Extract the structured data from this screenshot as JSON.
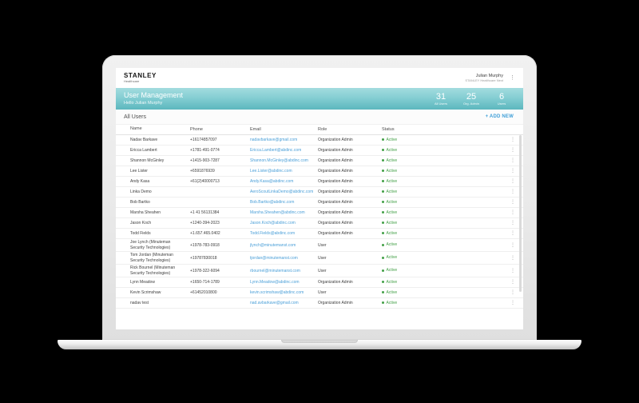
{
  "appbar": {
    "brand": "STANLEY",
    "brand_sub": "Healthcare",
    "account_name": "Julian Murphy",
    "account_org": "STANLEY Healthcare Next",
    "menu_icon": "kebab-menu"
  },
  "banner": {
    "title": "User Management",
    "subtitle": "Hello Julian Murphy",
    "stats": [
      {
        "value": "31",
        "label": "All Users"
      },
      {
        "value": "25",
        "label": "Org. Admin"
      },
      {
        "value": "6",
        "label": "Users"
      }
    ]
  },
  "toolbar": {
    "section_title": "All Users",
    "add_new_label": "+ ADD NEW"
  },
  "table": {
    "columns": [
      "Name",
      "Phone",
      "Email",
      "Role",
      "Status"
    ],
    "rows": [
      {
        "name": "Nadav Barkave",
        "phone": "+16174857097",
        "email": "nadavbarkave@gmail.com",
        "role": "Organization Admin",
        "status": "Active"
      },
      {
        "name": "Ericca Lambert",
        "phone": "+1781-491-0774",
        "email": "Ericca.Lambert@abdinc.com",
        "role": "Organization Admin",
        "status": "Active"
      },
      {
        "name": "Shannon McGinley",
        "phone": "+1415-903-7287",
        "email": "Shannon.McGinley@abdinc.com",
        "role": "Organization Admin",
        "status": "Active"
      },
      {
        "name": "Lee Lister",
        "phone": "+6591876939",
        "email": "Lee.Lister@abdinc.com",
        "role": "Organization Admin",
        "status": "Active"
      },
      {
        "name": "Andy Kasa",
        "phone": "+61(2)40000713",
        "email": "Andy.Kasa@abdinc.com",
        "role": "Organization Admin",
        "status": "Active"
      },
      {
        "name": "Linka Demo",
        "phone": "",
        "email": "AeroScoutLinkaDemo@abdinc.com",
        "role": "Organization Admin",
        "status": "Active"
      },
      {
        "name": "Bob Bartko",
        "phone": "",
        "email": "Bob.Bartko@abdinc.com",
        "role": "Organization Admin",
        "status": "Active"
      },
      {
        "name": "Marsha Sheahen",
        "phone": "+1 41 56131384",
        "email": "Marsha.Sheahen@abdinc.com",
        "role": "Organization Admin",
        "status": "Active"
      },
      {
        "name": "Jason Koch",
        "phone": "+1240-394-2023",
        "email": "Jason.Koch@abdinc.com",
        "role": "Organization Admin",
        "status": "Active"
      },
      {
        "name": "Todd Fields",
        "phone": "+1.657.465.0402",
        "email": "Todd.Fields@abdinc.com",
        "role": "Organization Admin",
        "status": "Active"
      },
      {
        "name": "Joe Lynch (Minuteman Security Technologies)",
        "phone": "+1978-783-0918",
        "email": "jlynch@minutemanst.com",
        "role": "User",
        "status": "Active"
      },
      {
        "name": "Tom Jordan (Minuteman Security Technologies)",
        "phone": "+19787830018",
        "email": "tjordan@minutemanst.com",
        "role": "User",
        "status": "Active"
      },
      {
        "name": "Rick Bournel (Minuteman Security Technologies)",
        "phone": "+1978-322-6094",
        "email": "rbournel@minutemanst.com",
        "role": "User",
        "status": "Active"
      },
      {
        "name": "Lynn Meadow",
        "phone": "+1650-714-1789",
        "email": "Lynn.Meadow@abdinc.com",
        "role": "Organization Admin",
        "status": "Active"
      },
      {
        "name": "Kevin Scrimshaw",
        "phone": "+61452010800",
        "email": "kevin.scrimshaw@abdinc.com",
        "role": "User",
        "status": "Active"
      },
      {
        "name": "nadav test",
        "phone": "",
        "email": "nad.avbarkave@gmail.com",
        "role": "Organization Admin",
        "status": "Active"
      }
    ]
  },
  "colors": {
    "banner_teal_top": "#a3dcdf",
    "banner_teal_bottom": "#5cb7be",
    "link_blue": "#4a9fd8",
    "accent_blue": "#3f9fd8",
    "status_green": "#43a047",
    "background": "#000000"
  }
}
